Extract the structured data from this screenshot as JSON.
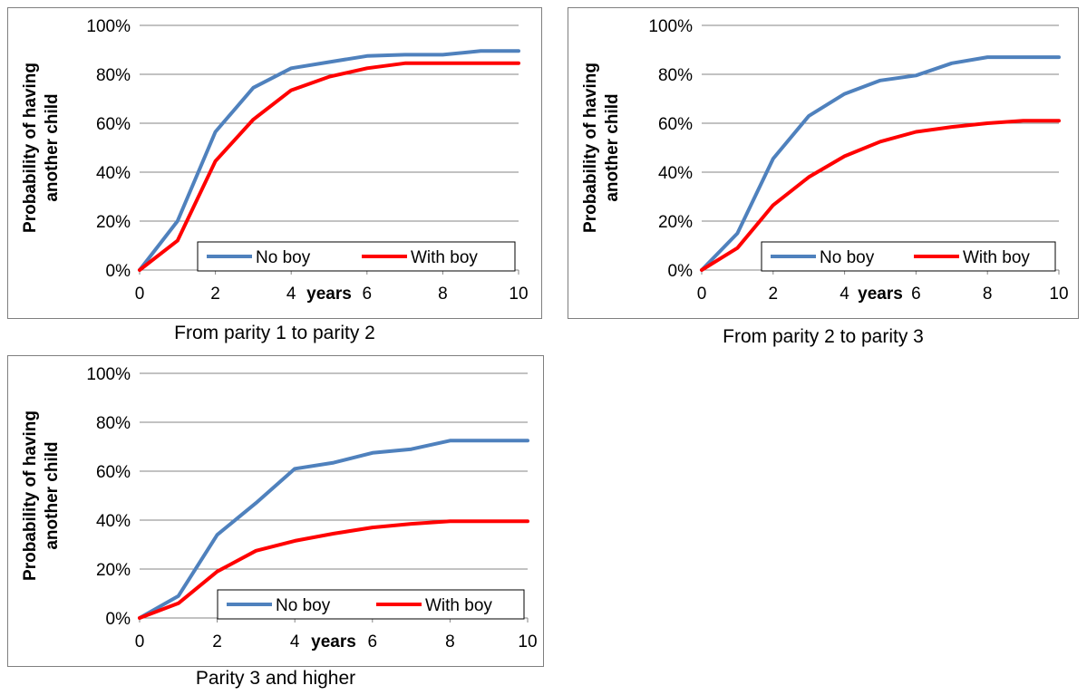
{
  "chart_data": [
    {
      "type": "line",
      "caption": "From parity 1 to parity 2",
      "ylabel": "Probability of having another child",
      "xlabel": "years",
      "x": [
        0,
        1,
        2,
        3,
        4,
        5,
        6,
        7,
        8,
        9,
        10
      ],
      "xticks": [
        "0",
        "2",
        "4",
        "6",
        "8",
        "10"
      ],
      "yticks": [
        "0%",
        "20%",
        "40%",
        "60%",
        "80%",
        "100%"
      ],
      "xlim": [
        0,
        10
      ],
      "ylim": [
        0,
        100
      ],
      "grid": true,
      "legend": "bottom-right",
      "series": [
        {
          "name": "No boy",
          "color": "#4f81bd",
          "values": [
            0,
            20,
            56.5,
            74.5,
            82.5,
            85,
            87.5,
            88,
            88,
            89.5,
            89.5
          ]
        },
        {
          "name": "With boy",
          "color": "#ff0000",
          "values": [
            0,
            12,
            44.5,
            61.5,
            73.5,
            79,
            82.5,
            84.5,
            84.5,
            84.5,
            84.5
          ]
        }
      ]
    },
    {
      "type": "line",
      "caption": "From parity 2 to parity 3",
      "ylabel": "Probability of having another child",
      "xlabel": "years",
      "x": [
        0,
        1,
        2,
        3,
        4,
        5,
        6,
        7,
        8,
        9,
        10
      ],
      "xticks": [
        "0",
        "2",
        "4",
        "6",
        "8",
        "10"
      ],
      "yticks": [
        "0%",
        "20%",
        "40%",
        "60%",
        "80%",
        "100%"
      ],
      "xlim": [
        0,
        10
      ],
      "ylim": [
        0,
        100
      ],
      "grid": true,
      "legend": "bottom-right",
      "series": [
        {
          "name": "No boy",
          "color": "#4f81bd",
          "values": [
            0,
            15,
            45.5,
            63,
            72,
            77.5,
            79.5,
            84.5,
            87,
            87,
            87
          ]
        },
        {
          "name": "With boy",
          "color": "#ff0000",
          "values": [
            0,
            9,
            26.5,
            38,
            46.5,
            52.5,
            56.5,
            58.5,
            60,
            61,
            61
          ]
        }
      ]
    },
    {
      "type": "line",
      "caption": "Parity 3 and higher",
      "ylabel": "Probability of having another child",
      "xlabel": "years",
      "x": [
        0,
        1,
        2,
        3,
        4,
        5,
        6,
        7,
        8,
        9,
        10
      ],
      "xticks": [
        "0",
        "2",
        "4",
        "6",
        "8",
        "10"
      ],
      "yticks": [
        "0%",
        "20%",
        "40%",
        "60%",
        "80%",
        "100%"
      ],
      "xlim": [
        0,
        10
      ],
      "ylim": [
        0,
        100
      ],
      "grid": true,
      "legend": "bottom-right",
      "series": [
        {
          "name": "No boy",
          "color": "#4f81bd",
          "values": [
            0,
            9,
            34,
            47,
            61,
            63.5,
            67.5,
            69,
            72.5,
            72.5,
            72.5
          ]
        },
        {
          "name": "With boy",
          "color": "#ff0000",
          "values": [
            0,
            6,
            19,
            27.5,
            31.5,
            34.5,
            37,
            38.5,
            39.5,
            39.5,
            39.5
          ]
        }
      ]
    }
  ]
}
